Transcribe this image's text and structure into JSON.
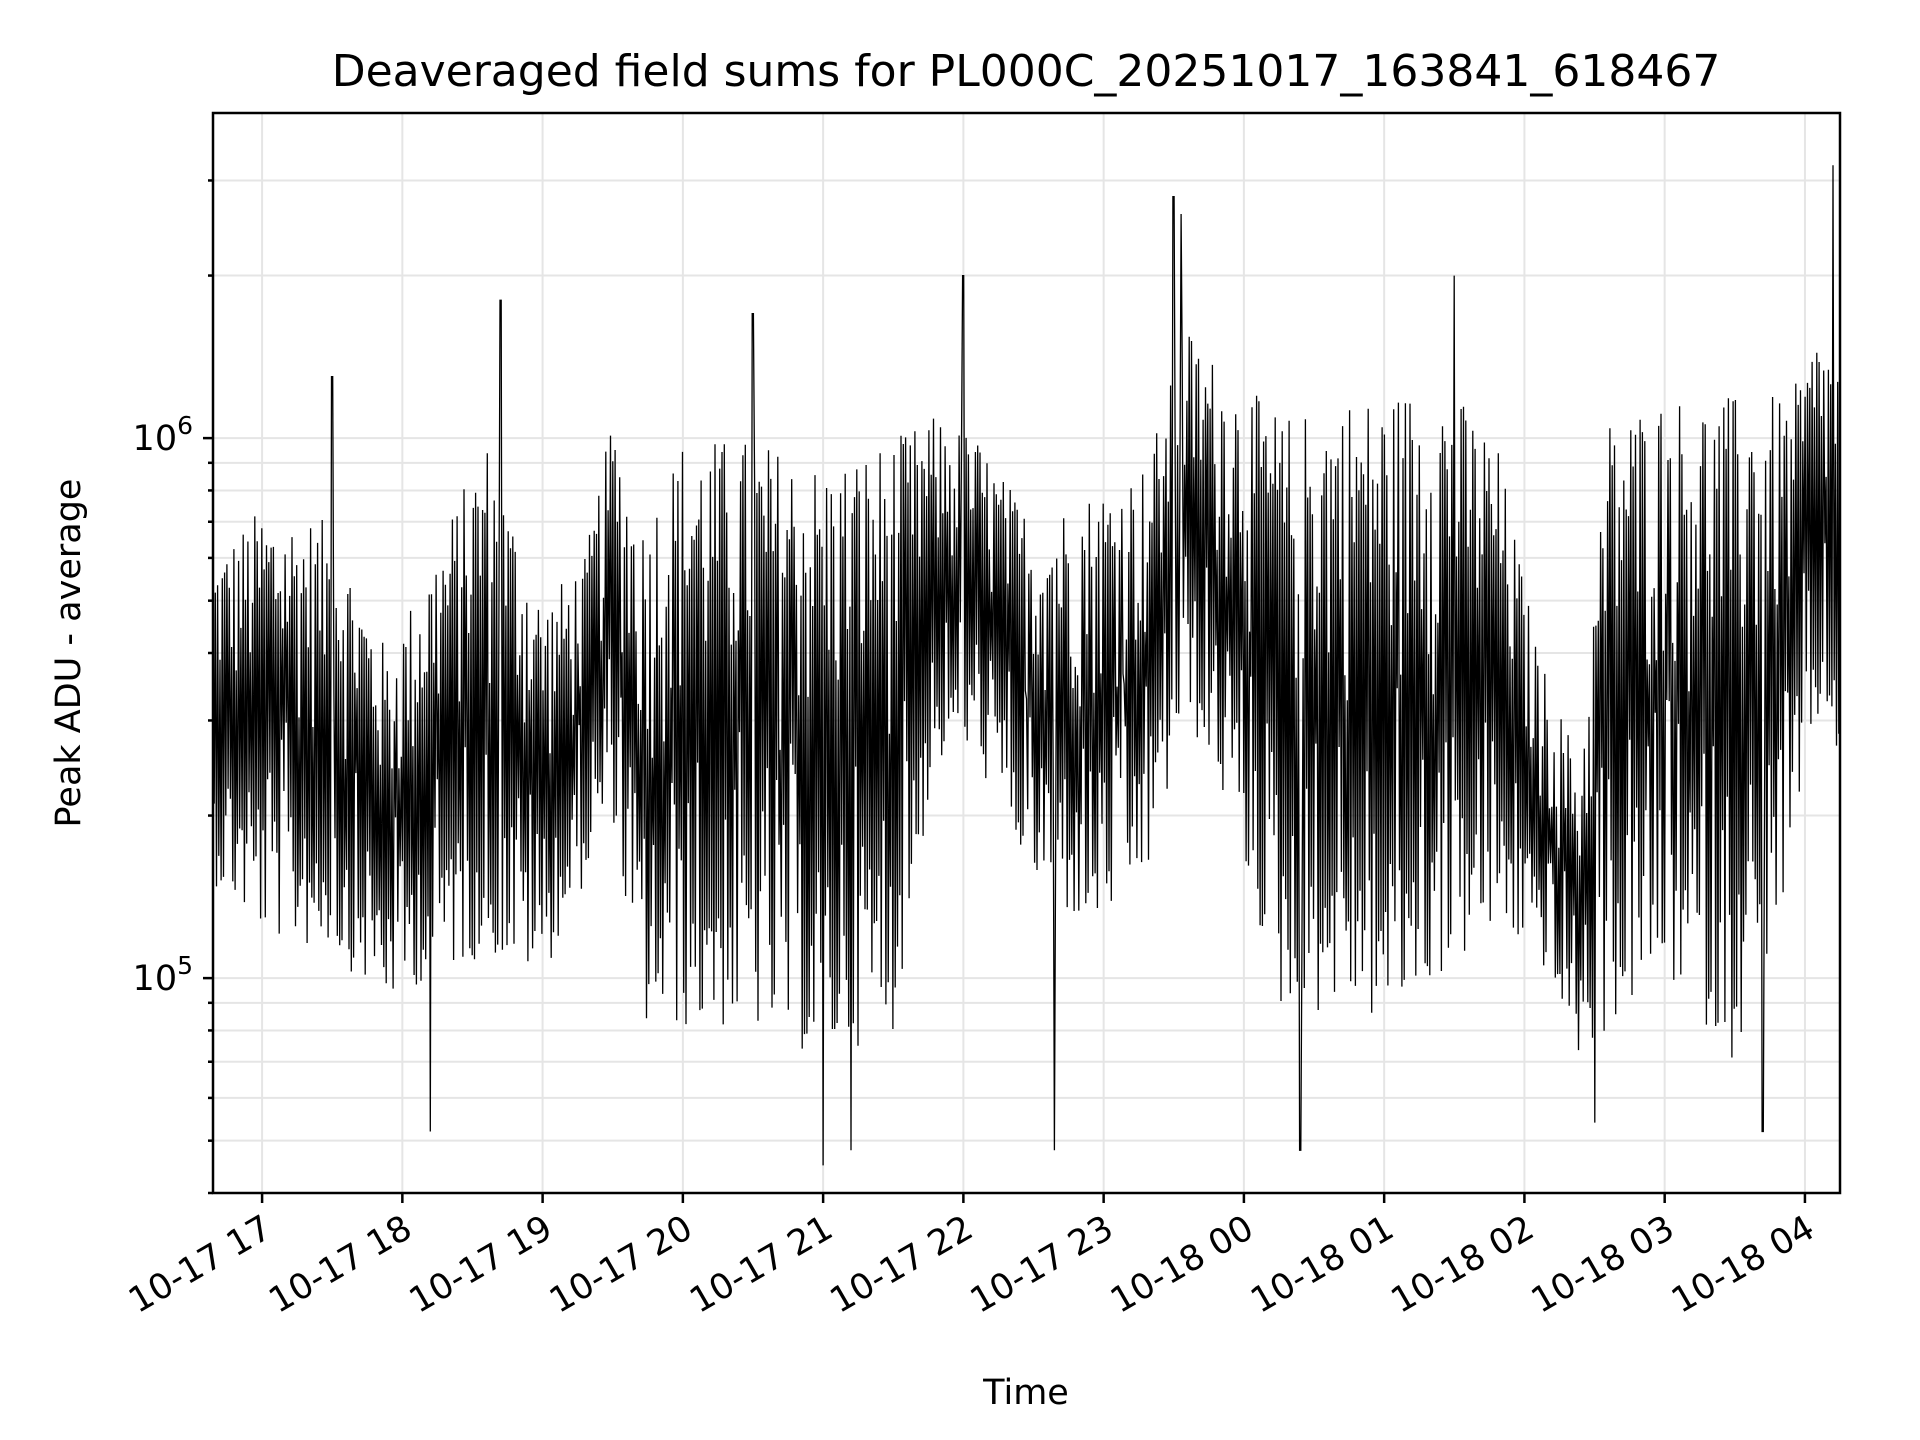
{
  "chart_data": {
    "type": "line",
    "title": "Deaveraged field sums for PL000C_20251017_163841_618467",
    "xlabel": "Time",
    "ylabel": "Peak ADU - average",
    "yscale": "log",
    "ylim": [
      40000,
      4000000
    ],
    "xlim_hours": [
      16.65,
      28.25
    ],
    "grid": true,
    "x_ticks": [
      {
        "label": "10-17 17",
        "hour": 17
      },
      {
        "label": "10-17 18",
        "hour": 18
      },
      {
        "label": "10-17 19",
        "hour": 19
      },
      {
        "label": "10-17 20",
        "hour": 20
      },
      {
        "label": "10-17 21",
        "hour": 21
      },
      {
        "label": "10-17 22",
        "hour": 22
      },
      {
        "label": "10-17 23",
        "hour": 23
      },
      {
        "label": "10-18 00",
        "hour": 24
      },
      {
        "label": "10-18 01",
        "hour": 25
      },
      {
        "label": "10-18 02",
        "hour": 26
      },
      {
        "label": "10-18 03",
        "hour": 27
      },
      {
        "label": "10-18 04",
        "hour": 28
      }
    ],
    "y_ticks": [
      {
        "base": "10",
        "exp": "5",
        "value": 100000
      },
      {
        "base": "10",
        "exp": "6",
        "value": 1000000
      }
    ],
    "y_minor_ticks": [
      40000,
      50000,
      60000,
      70000,
      80000,
      90000,
      200000,
      300000,
      400000,
      500000,
      600000,
      700000,
      800000,
      900000,
      2000000,
      3000000
    ],
    "series": [
      {
        "name": "deaveraged field sum",
        "color": "#000000",
        "sampling": "approx. 2 samples per minute; each sample swings between a band low and band high",
        "band_profile": [
          {
            "hour": 16.65,
            "low": 150000,
            "high": 600000
          },
          {
            "hour": 17.0,
            "low": 120000,
            "high": 750000
          },
          {
            "hour": 17.5,
            "low": 110000,
            "high": 700000
          },
          {
            "hour": 17.9,
            "low": 90000,
            "high": 400000
          },
          {
            "hour": 18.2,
            "low": 100000,
            "high": 600000
          },
          {
            "hour": 18.6,
            "low": 110000,
            "high": 1000000
          },
          {
            "hour": 19.0,
            "low": 100000,
            "high": 500000
          },
          {
            "hour": 19.3,
            "low": 150000,
            "high": 600000
          },
          {
            "hour": 19.5,
            "low": 200000,
            "high": 1100000
          },
          {
            "hour": 19.7,
            "low": 80000,
            "high": 700000
          },
          {
            "hour": 20.0,
            "low": 80000,
            "high": 1000000
          },
          {
            "hour": 20.5,
            "low": 80000,
            "high": 1000000
          },
          {
            "hour": 21.0,
            "low": 70000,
            "high": 900000
          },
          {
            "hour": 21.5,
            "low": 80000,
            "high": 1000000
          },
          {
            "hour": 21.8,
            "low": 250000,
            "high": 1100000
          },
          {
            "hour": 22.1,
            "low": 250000,
            "high": 1000000
          },
          {
            "hour": 22.5,
            "low": 150000,
            "high": 700000
          },
          {
            "hour": 22.9,
            "low": 120000,
            "high": 800000
          },
          {
            "hour": 23.3,
            "low": 150000,
            "high": 900000
          },
          {
            "hour": 23.6,
            "low": 300000,
            "high": 1600000
          },
          {
            "hour": 23.9,
            "low": 200000,
            "high": 1300000
          },
          {
            "hour": 24.3,
            "low": 80000,
            "high": 1100000
          },
          {
            "hour": 24.7,
            "low": 90000,
            "high": 1200000
          },
          {
            "hour": 25.0,
            "low": 80000,
            "high": 1200000
          },
          {
            "hour": 25.4,
            "low": 100000,
            "high": 1300000
          },
          {
            "hour": 25.8,
            "low": 120000,
            "high": 1000000
          },
          {
            "hour": 26.1,
            "low": 110000,
            "high": 400000
          },
          {
            "hour": 26.4,
            "low": 70000,
            "high": 250000
          },
          {
            "hour": 26.6,
            "low": 80000,
            "high": 1100000
          },
          {
            "hour": 27.0,
            "low": 100000,
            "high": 1200000
          },
          {
            "hour": 27.5,
            "low": 70000,
            "high": 1200000
          },
          {
            "hour": 27.9,
            "low": 150000,
            "high": 1200000
          },
          {
            "hour": 28.1,
            "low": 300000,
            "high": 1600000
          },
          {
            "hour": 28.25,
            "low": 250000,
            "high": 1400000
          }
        ],
        "extremes": [
          {
            "hour": 17.5,
            "value": 1300000
          },
          {
            "hour": 18.7,
            "value": 1800000
          },
          {
            "hour": 20.5,
            "value": 1700000
          },
          {
            "hour": 22.0,
            "value": 2000000
          },
          {
            "hour": 23.5,
            "value": 2800000
          },
          {
            "hour": 23.55,
            "value": 2600000
          },
          {
            "hour": 25.5,
            "value": 2000000
          },
          {
            "hour": 28.2,
            "value": 3200000
          },
          {
            "hour": 18.2,
            "value": 52000
          },
          {
            "hour": 21.0,
            "value": 45000
          },
          {
            "hour": 21.2,
            "value": 48000
          },
          {
            "hour": 22.65,
            "value": 48000
          },
          {
            "hour": 24.4,
            "value": 48000
          },
          {
            "hour": 26.5,
            "value": 54000
          },
          {
            "hour": 27.7,
            "value": 52000
          }
        ]
      }
    ]
  }
}
